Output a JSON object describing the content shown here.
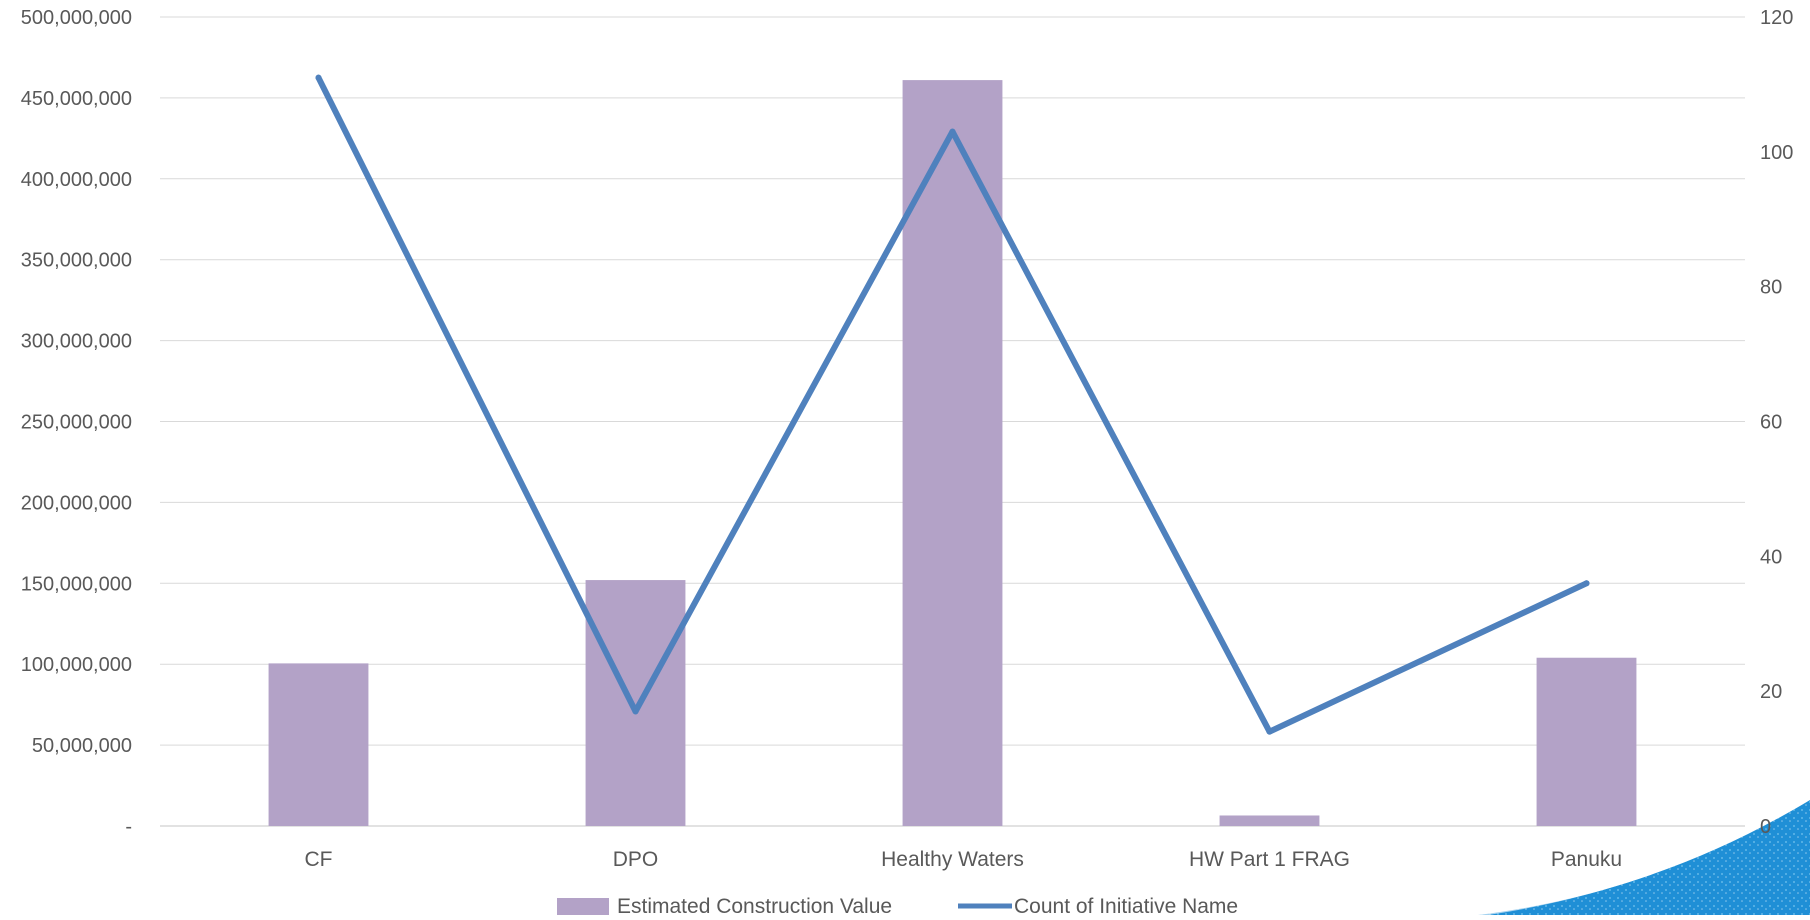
{
  "chart_data": {
    "type": "bar",
    "categories": [
      "CF",
      "DPO",
      "Healthy Waters",
      "HW Part 1 FRAG",
      "Panuku"
    ],
    "series": [
      {
        "name": "Estimated Construction Value",
        "type": "bar",
        "axis": "left",
        "values": [
          100500000,
          152000000,
          461000000,
          6500000,
          104000000
        ]
      },
      {
        "name": "Count of Initiative Name",
        "type": "line",
        "axis": "right",
        "values": [
          111,
          17,
          103,
          14,
          36
        ]
      }
    ],
    "y_left": {
      "min": 0,
      "max": 500000000,
      "ticks": [
        "-",
        "50,000,000",
        "100,000,000",
        "150,000,000",
        "200,000,000",
        "250,000,000",
        "300,000,000",
        "350,000,000",
        "400,000,000",
        "450,000,000",
        "500,000,000"
      ]
    },
    "y_right": {
      "min": 0,
      "max": 120,
      "ticks": [
        "0",
        "20",
        "40",
        "60",
        "80",
        "100",
        "120"
      ]
    },
    "grid": true,
    "legend": "bottom",
    "colors": {
      "bar": "#b3a2c7",
      "line": "#4f81bd",
      "grid": "#d9d9d9",
      "text": "#595959",
      "decoration": "#1f8fd6"
    }
  }
}
